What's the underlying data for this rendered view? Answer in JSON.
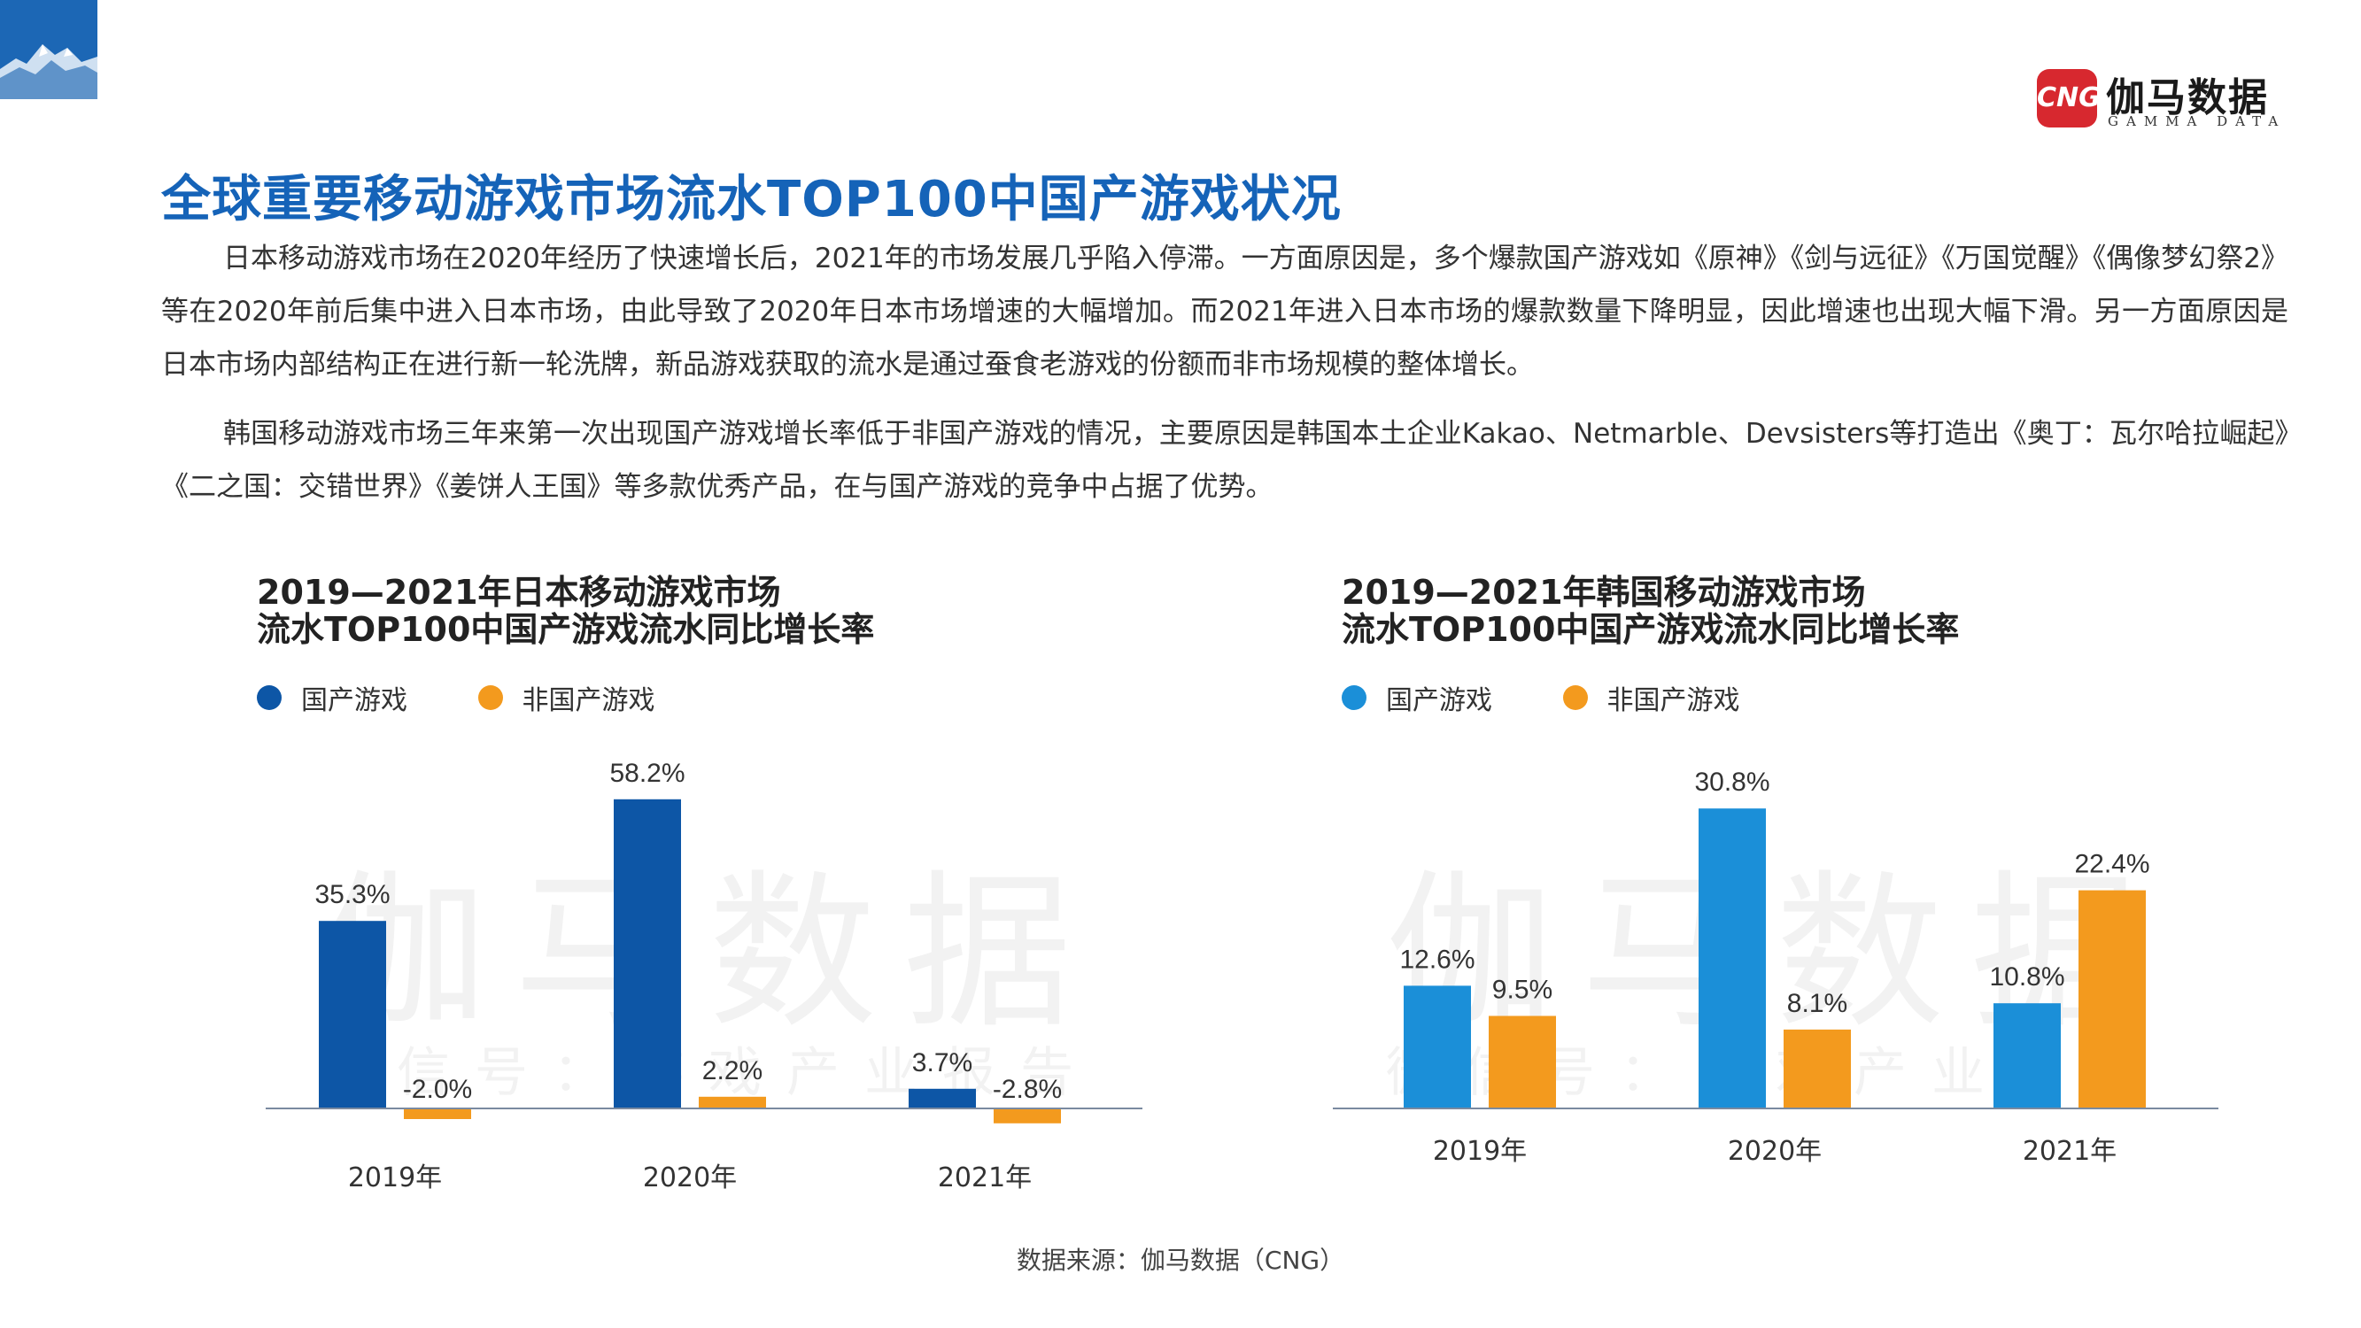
{
  "logo": {
    "badge": "CNG",
    "name": "伽马数据",
    "sub": "GAMMA DATA"
  },
  "title": "全球重要移动游戏市场流水TOP100中国产游戏状况",
  "paragraphs": [
    "日本移动游戏市场在2020年经历了快速增长后，2021年的市场发展几乎陷入停滞。一方面原因是，多个爆款国产游戏如《原神》《剑与远征》《万国觉醒》《偶像梦幻祭2》等在2020年前后集中进入日本市场，由此导致了2020年日本市场增速的大幅增加。而2021年进入日本市场的爆款数量下降明显，因此增速也出现大幅下滑。另一方面原因是日本市场内部结构正在进行新一轮洗牌，新品游戏获取的流水是通过蚕食老游戏的份额而非市场规模的整体增长。",
    "韩国移动游戏市场三年来第一次出现国产游戏增长率低于非国产游戏的情况，主要原因是韩国本土企业Kakao、Netmarble、Devsisters等打造出《奥丁：瓦尔哈拉崛起》《二之国：交错世界》《姜饼人王国》等多款优秀产品，在与国产游戏的竞争中占据了优势。"
  ],
  "watermark": {
    "main": "伽马数据",
    "sub": "微信号：游戏产业报告"
  },
  "chart_data": [
    {
      "type": "bar",
      "title_line1": "2019—2021年日本移动游戏市场",
      "title_line2": "流水TOP100中国产游戏流水同比增长率",
      "categories": [
        "2019年",
        "2020年",
        "2021年"
      ],
      "series": [
        {
          "name": "国产游戏",
          "color": "#0d56a6",
          "values": [
            35.3,
            58.2,
            3.7
          ],
          "labels": [
            "35.3%",
            "58.2%",
            "3.7%"
          ]
        },
        {
          "name": "非国产游戏",
          "color": "#f39a1e",
          "values": [
            -2.0,
            2.2,
            -2.8
          ],
          "labels": [
            "-2.0%",
            "2.2%",
            "-2.8%"
          ]
        }
      ],
      "ylim": [
        -5,
        60
      ]
    },
    {
      "type": "bar",
      "title_line1": "2019—2021年韩国移动游戏市场",
      "title_line2": "流水TOP100中国产游戏流水同比增长率",
      "categories": [
        "2019年",
        "2020年",
        "2021年"
      ],
      "series": [
        {
          "name": "国产游戏",
          "color": "#1b8fd8",
          "values": [
            12.6,
            30.8,
            10.8
          ],
          "labels": [
            "12.6%",
            "30.8%",
            "10.8%"
          ]
        },
        {
          "name": "非国产游戏",
          "color": "#f39a1e",
          "values": [
            9.5,
            8.1,
            22.4
          ],
          "labels": [
            "9.5%",
            "8.1%",
            "22.4%"
          ]
        }
      ],
      "ylim": [
        0,
        32
      ]
    }
  ],
  "source": "数据来源：伽马数据（CNG）"
}
